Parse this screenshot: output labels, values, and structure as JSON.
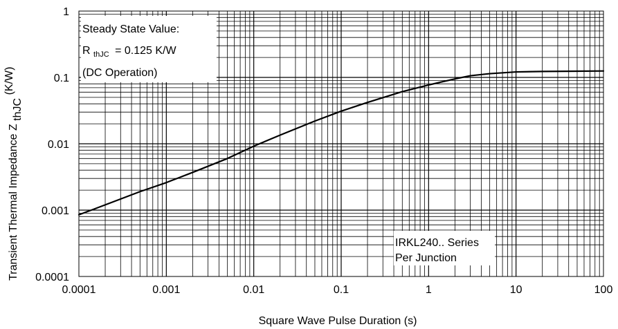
{
  "chart_data": {
    "type": "line",
    "title": "",
    "xlabel": "Square Wave Pulse Duration (s)",
    "ylabel": {
      "main": "Transient Thermal Impedance Z",
      "subscript": "thJC",
      "unit": "(K/W)"
    },
    "xscale": "log",
    "yscale": "log",
    "xlim": [
      0.0001,
      100
    ],
    "ylim": [
      0.0001,
      1
    ],
    "grid": true,
    "x_tick_labels": [
      "0.0001",
      "0.001",
      "0.01",
      "0.1",
      "1",
      "10",
      "100"
    ],
    "y_tick_labels": [
      "0.0001",
      "0.001",
      "0.01",
      "0.1",
      "1"
    ],
    "series": [
      {
        "points": [
          [
            0.0001,
            0.00085
          ],
          [
            0.0002,
            0.0012
          ],
          [
            0.0005,
            0.0019
          ],
          [
            0.001,
            0.0026
          ],
          [
            0.002,
            0.0037
          ],
          [
            0.005,
            0.006
          ],
          [
            0.01,
            0.0092
          ],
          [
            0.02,
            0.0135
          ],
          [
            0.05,
            0.022
          ],
          [
            0.1,
            0.031
          ],
          [
            0.2,
            0.042
          ],
          [
            0.5,
            0.061
          ],
          [
            1,
            0.077
          ],
          [
            2,
            0.095
          ],
          [
            3,
            0.106
          ],
          [
            5,
            0.114
          ],
          [
            10,
            0.121
          ],
          [
            20,
            0.123
          ],
          [
            50,
            0.124
          ],
          [
            100,
            0.125
          ]
        ],
        "color": "#000000"
      }
    ],
    "annotations": {
      "steady_state": {
        "line1": "Steady State Value:",
        "r_main": "R",
        "r_sub": "thJC",
        "r_value": "= 0.125 K/W",
        "line3": "(DC Operation)"
      },
      "series_note": {
        "line1": "IRKL240.. Series",
        "line2": "Per Junction"
      }
    }
  }
}
